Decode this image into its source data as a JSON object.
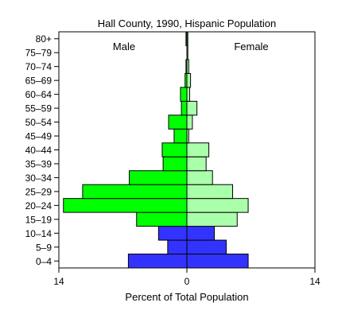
{
  "chart_data": {
    "type": "bar",
    "title": "Hall County, 1990, Hispanic Population",
    "xlabel": "Percent of Total Population",
    "xlim": [
      -14,
      14
    ],
    "x_tick_labels": [
      "14",
      "0",
      "14"
    ],
    "categories": [
      "0-4",
      "5-9",
      "10-14",
      "15-19",
      "20-24",
      "25-29",
      "30-34",
      "35-39",
      "40-44",
      "45-49",
      "50-54",
      "55-59",
      "60-64",
      "65-69",
      "70-74",
      "75-79",
      "80+"
    ],
    "panel_labels": {
      "male": "Male",
      "female": "Female"
    },
    "series": [
      {
        "name": "Male",
        "values": [
          6.4,
          2.1,
          3.1,
          5.5,
          13.5,
          11.4,
          6.3,
          2.6,
          2.7,
          1.4,
          2.0,
          0.6,
          0.7,
          0.2,
          0.1,
          0.0,
          0.1
        ]
      },
      {
        "name": "Female",
        "values": [
          6.7,
          4.3,
          3.0,
          5.5,
          6.7,
          5.0,
          2.8,
          2.1,
          2.4,
          0.2,
          0.6,
          1.1,
          0.3,
          0.4,
          0.2,
          0.1,
          0.1
        ]
      }
    ],
    "colors": {
      "child_group": "#3333ff",
      "male_adult": "#00ff00",
      "female_adult": "#aaffaa",
      "outline": "#000000"
    },
    "grid": false
  }
}
